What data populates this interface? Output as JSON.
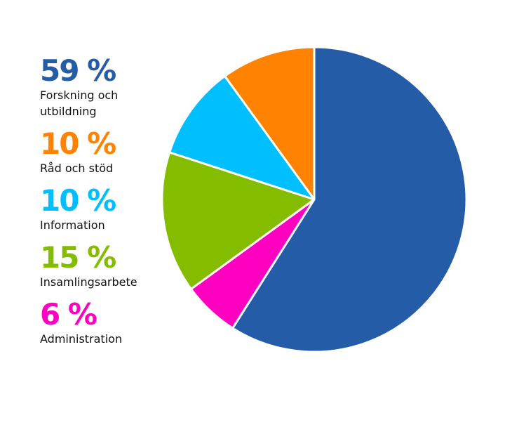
{
  "chart_data": {
    "type": "pie",
    "categories": [
      "Forskning och utbildning",
      "Råd och stöd",
      "Information",
      "Insamlingsarbete",
      "Administration"
    ],
    "values": [
      59,
      10,
      10,
      15,
      6
    ],
    "value_labels": [
      "59 %",
      "10 %",
      "10 %",
      "15 %",
      "6 %"
    ],
    "colors": [
      "#245ca8",
      "#ff8200",
      "#00bfff",
      "#84bc00",
      "#ff00c0"
    ]
  }
}
